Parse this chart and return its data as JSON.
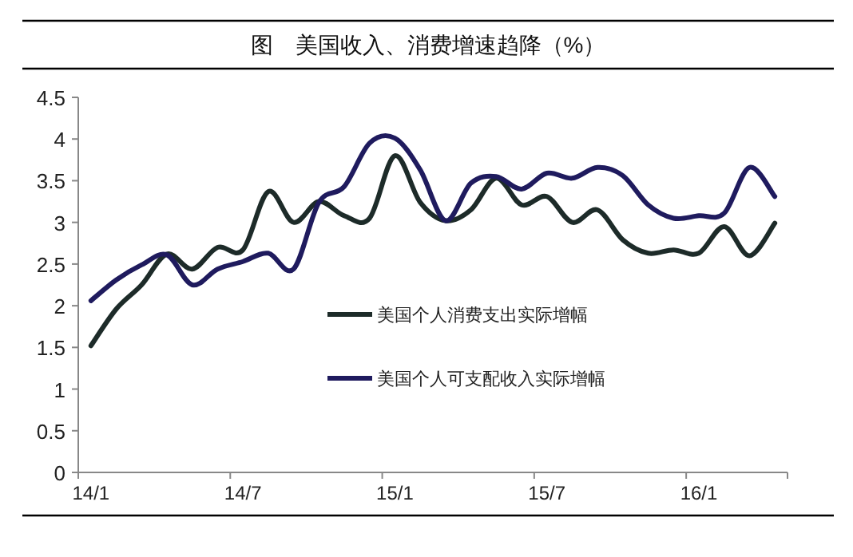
{
  "chart_data": {
    "type": "line",
    "title": "图　美国收入、消费增速趋降（%）",
    "categories": [
      "14/1",
      null,
      null,
      null,
      null,
      null,
      "14/7",
      null,
      null,
      null,
      null,
      null,
      "15/1",
      null,
      null,
      null,
      null,
      null,
      "15/7",
      null,
      null,
      null,
      null,
      null,
      "16/1",
      null,
      null,
      null
    ],
    "series": [
      {
        "name": "美国个人消费支出实际增幅",
        "color": "#1d2b29",
        "values": [
          1.52,
          1.96,
          2.25,
          2.62,
          2.44,
          2.7,
          2.67,
          3.37,
          3.0,
          3.25,
          3.08,
          3.05,
          3.8,
          3.24,
          3.02,
          3.15,
          3.53,
          3.21,
          3.31,
          3.0,
          3.15,
          2.79,
          2.63,
          2.67,
          2.63,
          2.95,
          2.6,
          2.99
        ]
      },
      {
        "name": "美国个人可支配收入实际增幅",
        "color": "#1f1b5e",
        "values": [
          2.06,
          2.31,
          2.49,
          2.61,
          2.25,
          2.44,
          2.53,
          2.63,
          2.44,
          3.24,
          3.43,
          3.95,
          4.01,
          3.63,
          3.02,
          3.47,
          3.55,
          3.4,
          3.59,
          3.53,
          3.66,
          3.56,
          3.21,
          3.05,
          3.08,
          3.11,
          3.66,
          3.31
        ]
      }
    ],
    "ylim": [
      0,
      4.5
    ],
    "yticks": [
      0,
      0.5,
      1,
      1.5,
      2,
      2.5,
      3,
      3.5,
      4,
      4.5
    ],
    "legend": "center",
    "marker": "none",
    "line_style": "solid",
    "grid": false
  }
}
